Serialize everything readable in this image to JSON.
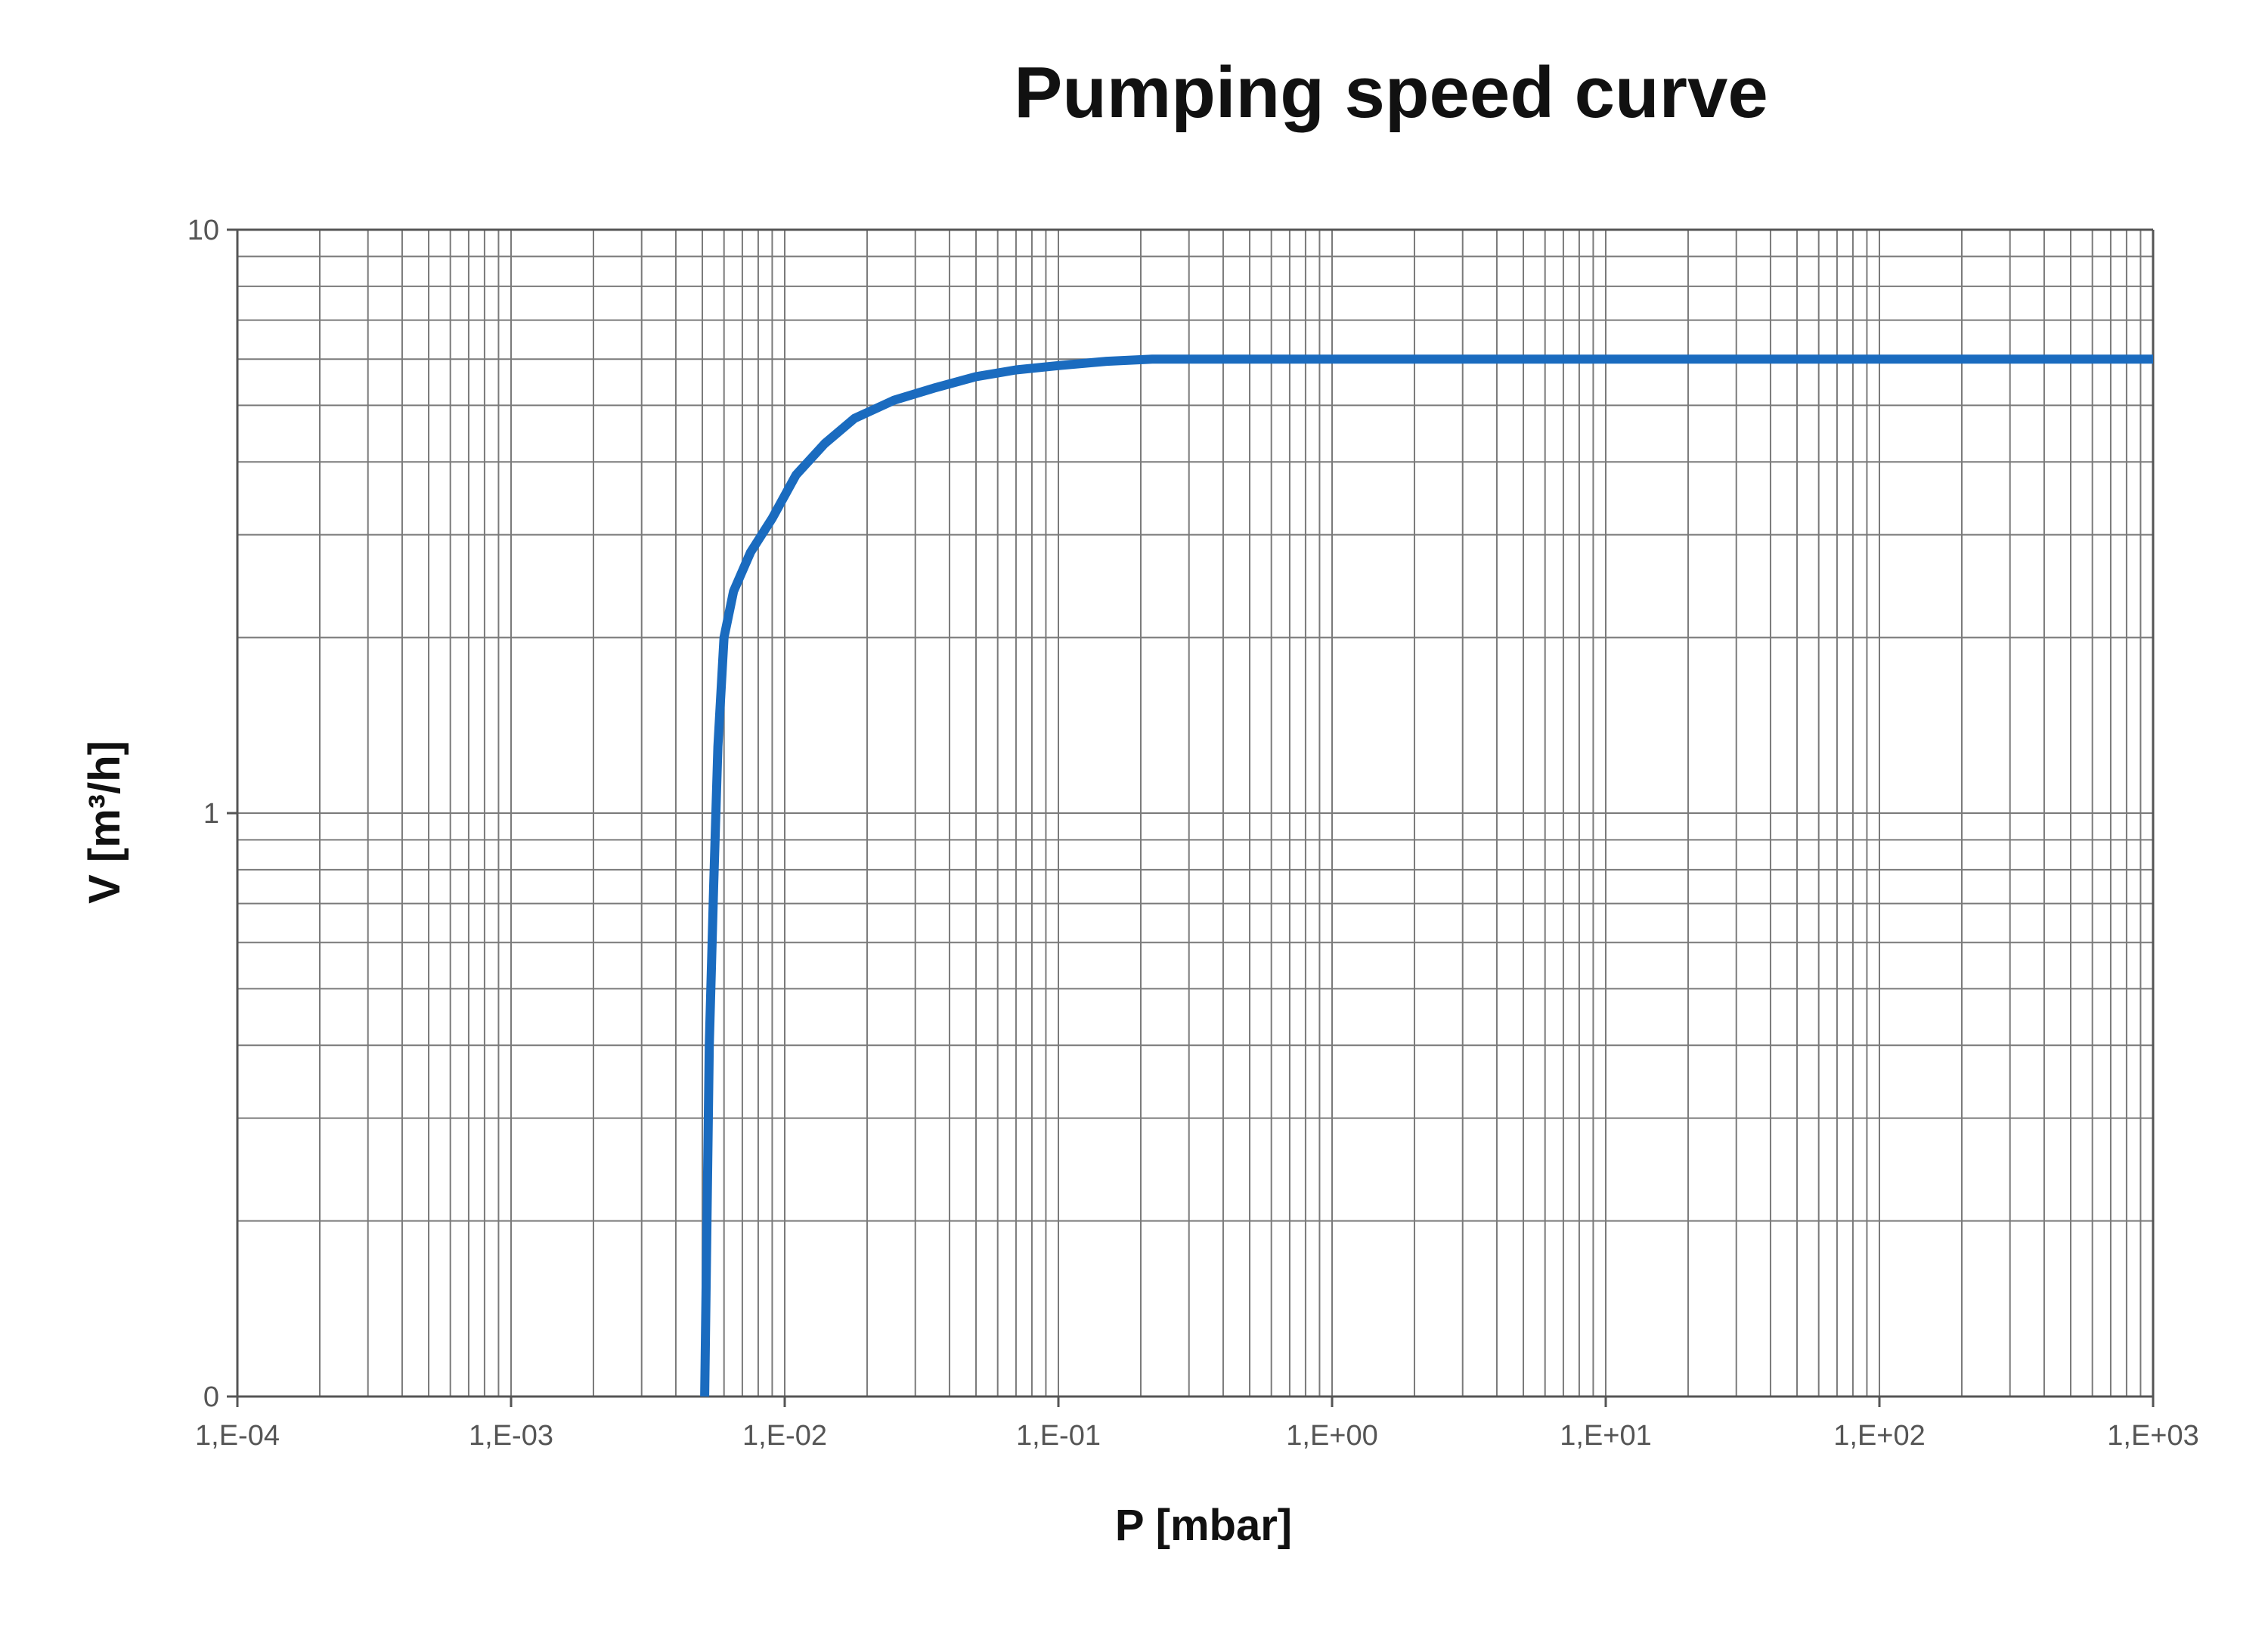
{
  "chart_data": {
    "type": "line",
    "title": "Pumping speed curve",
    "xlabel": "P [mbar]",
    "ylabel": "V [m³/h]",
    "x_scale": "log",
    "y_scale": "log",
    "xlim": [
      0.0001,
      1000
    ],
    "ylim": [
      0.1,
      10
    ],
    "x_tick_values": [
      0.0001,
      0.001,
      0.01,
      0.1,
      1,
      10,
      100,
      1000
    ],
    "x_tick_labels": [
      "1,E-04",
      "1,E-03",
      "1,E-02",
      "1,E-01",
      "1,E+00",
      "1,E+01",
      "1,E+02",
      "1,E+03"
    ],
    "y_tick_values": [
      0.1,
      1,
      10
    ],
    "y_tick_labels": [
      "0",
      "1",
      "10"
    ],
    "grid": true,
    "line_color": "#1a6bbf",
    "series": [
      {
        "x": [
          0.0051,
          0.0053,
          0.0055,
          0.0057,
          0.006,
          0.0065,
          0.0075,
          0.009,
          0.011,
          0.014,
          0.018,
          0.025,
          0.035,
          0.05,
          0.07,
          0.1,
          0.15,
          0.22,
          0.5,
          1,
          10,
          100,
          1000
        ],
        "y": [
          0.1,
          0.4,
          0.75,
          1.3,
          2.0,
          2.4,
          2.8,
          3.2,
          3.8,
          4.3,
          4.75,
          5.1,
          5.35,
          5.6,
          5.75,
          5.85,
          5.95,
          6.0,
          6.0,
          6.0,
          6.0,
          6.0,
          6.0
        ]
      }
    ]
  }
}
